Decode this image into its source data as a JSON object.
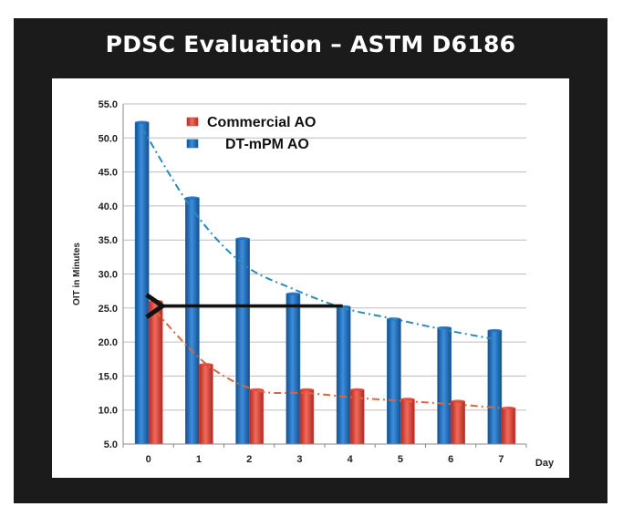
{
  "title": "PDSC Evaluation – ASTM D6186",
  "chart_data": {
    "type": "bar",
    "categories": [
      "0",
      "1",
      "2",
      "3",
      "4",
      "5",
      "6",
      "7"
    ],
    "xlabel": "Day",
    "ylabel": "OIT in Minutes",
    "ylim": [
      5.0,
      55.0
    ],
    "yticks": [
      "5.0",
      "10.0",
      "15.0",
      "20.0",
      "25.0",
      "30.0",
      "35.0",
      "40.0",
      "45.0",
      "50.0",
      "55.0"
    ],
    "grid": true,
    "legend": "top-left",
    "series": [
      {
        "name": "DT-mPM AO",
        "color": "#1f6fbf",
        "trend_color": "#2a8bb8",
        "values": [
          52.3,
          41.2,
          35.2,
          27.1,
          25.2,
          23.4,
          22.1,
          21.7
        ]
      },
      {
        "name": "Commercial  AO",
        "color": "#e0443a",
        "trend_color": "#e0663a",
        "values": [
          26.0,
          16.7,
          13.0,
          13.0,
          13.0,
          11.6,
          11.3,
          10.3
        ]
      }
    ],
    "trendlines": {
      "DT-mPM AO": [
        51.5,
        39.5,
        31.5,
        27.8,
        25.0,
        23.4,
        21.8,
        20.4
      ],
      "Commercial  AO": [
        24.5,
        16.8,
        12.9,
        12.5,
        11.8,
        11.3,
        10.8,
        10.2
      ]
    },
    "annotation": {
      "type": "arrow",
      "from": {
        "x": "4",
        "y": 25.3
      },
      "to": {
        "x": "0",
        "y": 25.3
      }
    }
  }
}
